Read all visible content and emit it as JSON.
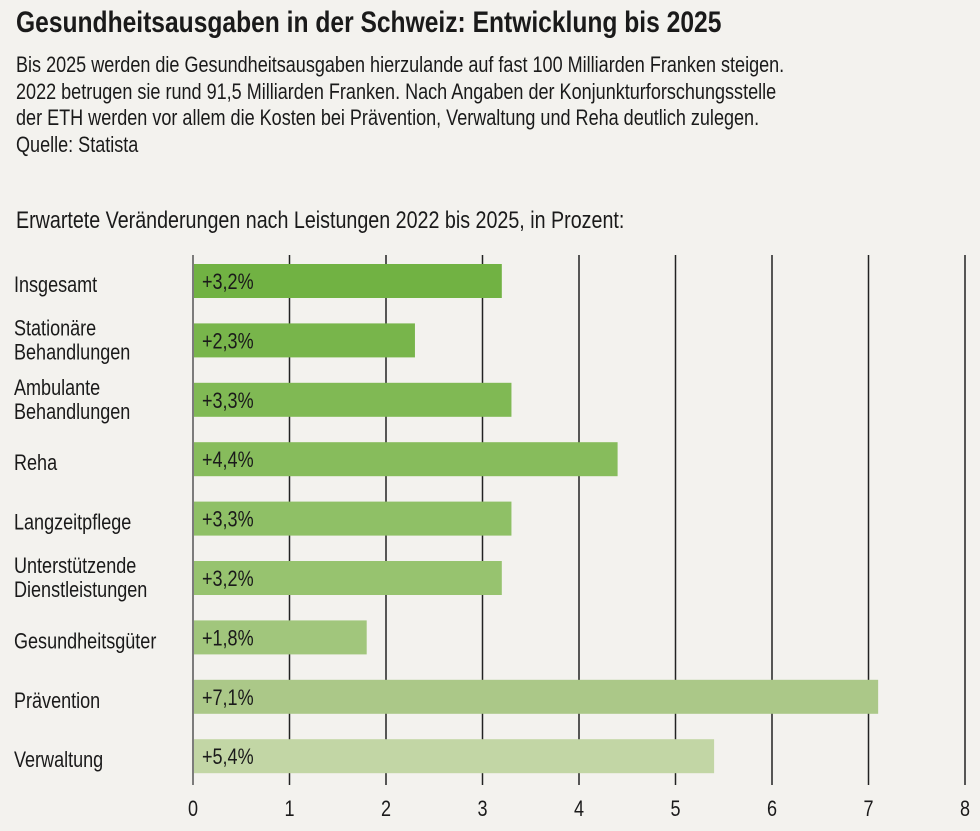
{
  "header": {
    "title": "Gesundheitsausgaben in der Schweiz: Entwicklung bis 2025",
    "description_lines": [
      "Bis 2025 werden die Gesundheitsausgaben hierzulande auf fast 100 Milliarden Franken steigen.",
      "2022 betrugen sie rund 91,5 Milliarden Franken. Nach Angaben der Konjunkturforschungsstelle",
      "der ETH werden vor allem die Kosten bei Prävention, Verwaltung und Reha deutlich zulegen.",
      "Quelle: Statista"
    ]
  },
  "chart_data": {
    "type": "bar",
    "orientation": "horizontal",
    "title": "Erwartete Veränderungen nach Leistungen 2022 bis 2025, in Prozent:",
    "categories": [
      [
        "Insgesamt"
      ],
      [
        "Stationäre",
        "Behandlungen"
      ],
      [
        "Ambulante",
        "Behandlungen"
      ],
      [
        "Reha"
      ],
      [
        "Langzeitpflege"
      ],
      [
        "Unterstützende",
        "Dienstleistungen"
      ],
      [
        "Gesundheitsgüter"
      ],
      [
        "Prävention"
      ],
      [
        "Verwaltung"
      ]
    ],
    "values": [
      3.2,
      2.3,
      3.3,
      4.4,
      3.3,
      3.2,
      1.8,
      7.1,
      5.4
    ],
    "data_labels": [
      "+3,2%",
      "+2,3%",
      "+3,3%",
      "+4,4%",
      "+3,3%",
      "+3,2%",
      "+1,8%",
      "+7,1%",
      "+5,4%"
    ],
    "colors": [
      "#71b243",
      "#78b54b",
      "#80b954",
      "#87bc5c",
      "#8fc066",
      "#97c36f",
      "#a1c67c",
      "#abc888",
      "#c2d6a5"
    ],
    "xlim": [
      0,
      8
    ],
    "xticks": [
      "0",
      "1",
      "2",
      "3",
      "4",
      "5",
      "6",
      "7",
      "8"
    ],
    "grid": true,
    "xlabel": "",
    "ylabel": ""
  }
}
